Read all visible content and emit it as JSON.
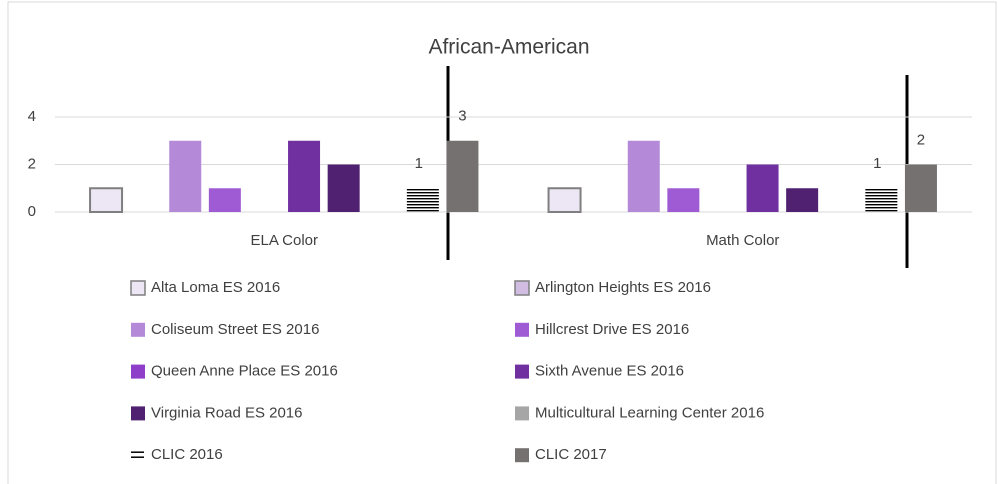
{
  "chart_data": {
    "type": "bar",
    "title": "African-American",
    "categories": [
      "ELA Color",
      "Math Color"
    ],
    "series": [
      {
        "name": "Alta Loma ES 2016",
        "color": "#ede6f4",
        "values": [
          1,
          1
        ]
      },
      {
        "name": "Arlington Heights ES 2016",
        "color": "#d2bde2",
        "values": [
          0,
          0
        ]
      },
      {
        "name": "Coliseum Street ES 2016",
        "color": "#b48ad8",
        "values": [
          3,
          3
        ]
      },
      {
        "name": "Hillcrest Drive ES 2016",
        "color": "#9f5bd4",
        "values": [
          1,
          1
        ]
      },
      {
        "name": "Queen Anne Place ES 2016",
        "color": "#8e3ec8",
        "values": [
          0,
          0
        ]
      },
      {
        "name": "Sixth Avenue ES 2016",
        "color": "#7030a0",
        "values": [
          3,
          2
        ]
      },
      {
        "name": "Virginia Road ES 2016",
        "color": "#4f2170",
        "values": [
          2,
          1
        ]
      },
      {
        "name": "Multicultural Learning Center 2016",
        "color": "#a6a6a6",
        "values": [
          0,
          0
        ]
      },
      {
        "name": "CLIC 2016",
        "color": "#000000",
        "pattern": "horizontal-lines",
        "data_labels": true,
        "values": [
          1,
          1
        ]
      },
      {
        "name": "CLIC 2017",
        "color": "#767171",
        "data_labels": true,
        "values": [
          3,
          2
        ]
      }
    ],
    "ylim": [
      0,
      4
    ],
    "yticks": [
      0,
      2,
      4
    ],
    "grid": true,
    "legend": "bottom"
  }
}
